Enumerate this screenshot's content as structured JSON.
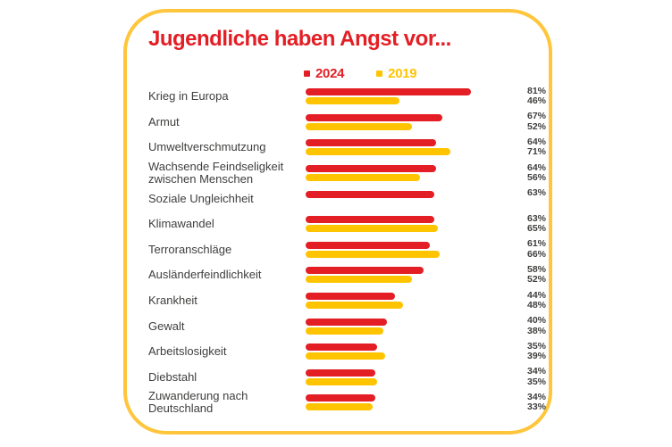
{
  "card": {
    "title": "Jugendliche haben Angst vor..."
  },
  "colors": {
    "red": "#E31E24",
    "yellow": "#FFC400",
    "card_border": "#FFC53B",
    "text": "#3E3E3D",
    "background": "#FFFFFF"
  },
  "chart_data": {
    "type": "bar",
    "orientation": "horizontal",
    "title": "Jugendliche haben Angst vor...",
    "unit": "%",
    "xlim": [
      0,
      100
    ],
    "grid": false,
    "legend_position": "top",
    "value_labels_position": "right",
    "categories": [
      "Krieg in Europa",
      "Armut",
      "Umweltverschmutzung",
      "Wachsende Feindseligkeit zwischen Menschen",
      "Soziale Ungleichheit",
      "Klimawandel",
      "Terroranschläge",
      "Ausländerfeindlichkeit",
      "Krankheit",
      "Gewalt",
      "Arbeitslosigkeit",
      "Diebstahl",
      "Zuwanderung nach Deutschland"
    ],
    "series": [
      {
        "name": "2024",
        "color": "#E31E24",
        "values": [
          81,
          67,
          64,
          64,
          63,
          63,
          61,
          58,
          44,
          40,
          35,
          34,
          34
        ]
      },
      {
        "name": "2019",
        "color": "#FFC400",
        "values": [
          46,
          52,
          71,
          56,
          null,
          65,
          66,
          52,
          48,
          38,
          39,
          35,
          33
        ]
      }
    ]
  }
}
